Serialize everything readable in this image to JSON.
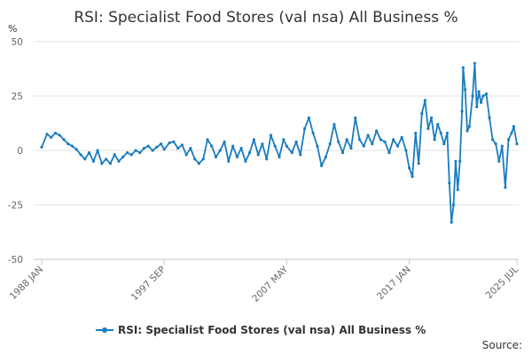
{
  "chart_data": {
    "type": "line",
    "title": "RSI: Specialist Food Stores (val nsa) All Business %",
    "ylabel": "%",
    "xlabel": "",
    "ylim": [
      -50,
      50
    ],
    "yticks": [
      50,
      25,
      0,
      -25,
      -50
    ],
    "xticks": [
      "1988 JAN",
      "1997 SEP",
      "2007 MAY",
      "2017 JAN",
      "2025 JUL"
    ],
    "grid": true,
    "legend_position": "bottom",
    "source": "Source:",
    "color": "#1a7dc0",
    "series": [
      {
        "name": "RSI: Specialist Food Stores (val nsa) All Business %",
        "points": [
          [
            "1988-01",
            1.5
          ],
          [
            "1988-06",
            7.5
          ],
          [
            "1988-10",
            6.0
          ],
          [
            "1989-02",
            8.0
          ],
          [
            "1989-06",
            7.0
          ],
          [
            "1989-10",
            5.0
          ],
          [
            "1990-02",
            3.0
          ],
          [
            "1990-06",
            2.0
          ],
          [
            "1990-10",
            0.5
          ],
          [
            "1991-02",
            -2.0
          ],
          [
            "1991-06",
            -4.0
          ],
          [
            "1991-10",
            -1.0
          ],
          [
            "1992-02",
            -5.0
          ],
          [
            "1992-06",
            0.0
          ],
          [
            "1992-10",
            -6.0
          ],
          [
            "1993-02",
            -4.0
          ],
          [
            "1993-06",
            -6.0
          ],
          [
            "1993-10",
            -2.0
          ],
          [
            "1994-02",
            -5.0
          ],
          [
            "1994-06",
            -3.0
          ],
          [
            "1994-10",
            -1.0
          ],
          [
            "1995-02",
            -2.0
          ],
          [
            "1995-06",
            0.0
          ],
          [
            "1995-10",
            -1.0
          ],
          [
            "1996-02",
            1.0
          ],
          [
            "1996-06",
            2.0
          ],
          [
            "1996-10",
            0.0
          ],
          [
            "1997-02",
            1.5
          ],
          [
            "1997-06",
            3.0
          ],
          [
            "1997-09",
            0.5
          ],
          [
            "1998-02",
            3.5
          ],
          [
            "1998-06",
            4.0
          ],
          [
            "1998-10",
            1.0
          ],
          [
            "1999-02",
            2.5
          ],
          [
            "1999-06",
            -2.0
          ],
          [
            "1999-10",
            1.0
          ],
          [
            "2000-02",
            -4.0
          ],
          [
            "2000-06",
            -6.0
          ],
          [
            "2000-10",
            -4.0
          ],
          [
            "2001-02",
            5.0
          ],
          [
            "2001-06",
            2.0
          ],
          [
            "2001-10",
            -3.0
          ],
          [
            "2002-02",
            0.0
          ],
          [
            "2002-06",
            4.0
          ],
          [
            "2002-10",
            -5.0
          ],
          [
            "2003-02",
            2.0
          ],
          [
            "2003-06",
            -3.0
          ],
          [
            "2003-10",
            1.0
          ],
          [
            "2004-02",
            -5.0
          ],
          [
            "2004-06",
            -1.0
          ],
          [
            "2004-10",
            5.0
          ],
          [
            "2005-02",
            -2.0
          ],
          [
            "2005-06",
            3.0
          ],
          [
            "2005-10",
            -4.0
          ],
          [
            "2006-02",
            7.0
          ],
          [
            "2006-06",
            2.0
          ],
          [
            "2006-10",
            -3.0
          ],
          [
            "2007-02",
            5.0
          ],
          [
            "2007-05",
            2.0
          ],
          [
            "2007-10",
            -1.0
          ],
          [
            "2008-02",
            4.0
          ],
          [
            "2008-06",
            -2.0
          ],
          [
            "2008-10",
            10.0
          ],
          [
            "2009-02",
            15.0
          ],
          [
            "2009-06",
            8.0
          ],
          [
            "2009-10",
            2.0
          ],
          [
            "2010-02",
            -7.0
          ],
          [
            "2010-06",
            -3.0
          ],
          [
            "2010-10",
            3.0
          ],
          [
            "2011-02",
            12.0
          ],
          [
            "2011-06",
            4.0
          ],
          [
            "2011-10",
            -1.0
          ],
          [
            "2012-02",
            5.0
          ],
          [
            "2012-06",
            1.0
          ],
          [
            "2012-10",
            15.0
          ],
          [
            "2013-02",
            5.0
          ],
          [
            "2013-06",
            2.0
          ],
          [
            "2013-10",
            7.0
          ],
          [
            "2014-02",
            3.0
          ],
          [
            "2014-06",
            9.0
          ],
          [
            "2014-10",
            5.0
          ],
          [
            "2015-02",
            4.0
          ],
          [
            "2015-06",
            -1.0
          ],
          [
            "2015-10",
            5.0
          ],
          [
            "2016-02",
            2.0
          ],
          [
            "2016-06",
            6.0
          ],
          [
            "2016-10",
            0.0
          ],
          [
            "2017-01",
            -8.0
          ],
          [
            "2017-04",
            -12.0
          ],
          [
            "2017-07",
            8.0
          ],
          [
            "2017-10",
            -6.0
          ],
          [
            "2018-01",
            17.0
          ],
          [
            "2018-04",
            23.0
          ],
          [
            "2018-07",
            10.0
          ],
          [
            "2018-10",
            15.0
          ],
          [
            "2019-01",
            5.0
          ],
          [
            "2019-04",
            12.0
          ],
          [
            "2019-07",
            8.0
          ],
          [
            "2019-10",
            3.0
          ],
          [
            "2020-01",
            8.0
          ],
          [
            "2020-03",
            -15.0
          ],
          [
            "2020-05",
            -33.0
          ],
          [
            "2020-07",
            -25.0
          ],
          [
            "2020-09",
            -5.0
          ],
          [
            "2020-11",
            -18.0
          ],
          [
            "2021-01",
            -5.0
          ],
          [
            "2021-03",
            18.0
          ],
          [
            "2021-04",
            38.0
          ],
          [
            "2021-06",
            28.0
          ],
          [
            "2021-08",
            9.0
          ],
          [
            "2021-10",
            11.0
          ],
          [
            "2022-01",
            25.0
          ],
          [
            "2022-03",
            40.0
          ],
          [
            "2022-05",
            20.0
          ],
          [
            "2022-07",
            27.0
          ],
          [
            "2022-09",
            22.0
          ],
          [
            "2022-11",
            25.0
          ],
          [
            "2023-02",
            26.0
          ],
          [
            "2023-05",
            15.0
          ],
          [
            "2023-08",
            5.0
          ],
          [
            "2023-11",
            3.0
          ],
          [
            "2024-02",
            -5.0
          ],
          [
            "2024-05",
            2.0
          ],
          [
            "2024-08",
            -17.0
          ],
          [
            "2024-11",
            5.0
          ],
          [
            "2025-02",
            8.0
          ],
          [
            "2025-04",
            11.0
          ],
          [
            "2025-07",
            3.0
          ]
        ]
      }
    ]
  }
}
